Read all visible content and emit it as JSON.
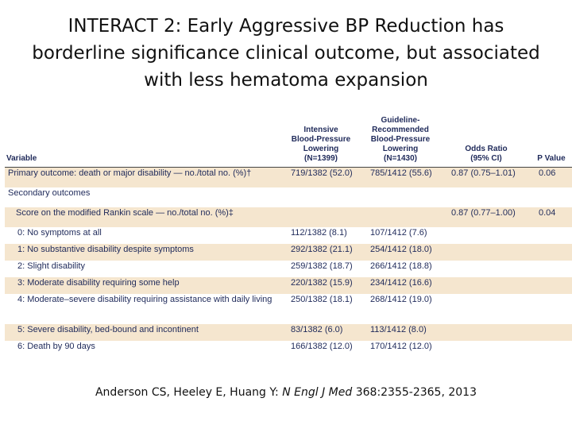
{
  "title": {
    "lines": [
      "INTERACT 2: Early Aggressive BP Reduction has",
      "borderline significance clinical outcome, but associated",
      "with less hematoma expansion"
    ]
  },
  "table": {
    "headers": {
      "variable": "Variable",
      "intensive": [
        "Intensive",
        "Blood-Pressure",
        "Lowering",
        "(N=1399)"
      ],
      "guideline": [
        "Guideline-",
        "Recommended",
        "Blood-Pressure",
        "Lowering",
        "(N=1430)"
      ],
      "odds": [
        "Odds Ratio",
        "(95% CI)"
      ],
      "pvalue": [
        "P Value"
      ]
    },
    "rows": [
      {
        "label": "Primary outcome: death or major disability — no./total no. (%)†",
        "intensive": "719/1382 (52.0)",
        "guideline": "785/1412 (55.6)",
        "odds": "0.87 (0.75–1.01)",
        "p": "0.06"
      },
      {
        "label": "Secondary outcomes",
        "intensive": "",
        "guideline": "",
        "odds": "",
        "p": ""
      },
      {
        "label": "Score on the modified Rankin scale — no./total no. (%)‡",
        "intensive": "",
        "guideline": "",
        "odds": "0.87 (0.77–1.00)",
        "p": "0.04"
      },
      {
        "label": "0: No symptoms at all",
        "intensive": "112/1382 (8.1)",
        "guideline": "107/1412 (7.6)",
        "odds": "",
        "p": ""
      },
      {
        "label": "1: No substantive disability despite symptoms",
        "intensive": "292/1382 (21.1)",
        "guideline": "254/1412 (18.0)",
        "odds": "",
        "p": ""
      },
      {
        "label": "2: Slight disability",
        "intensive": "259/1382 (18.7)",
        "guideline": "266/1412 (18.8)",
        "odds": "",
        "p": ""
      },
      {
        "label": "3: Moderate disability requiring some help",
        "intensive": "220/1382 (15.9)",
        "guideline": "234/1412 (16.6)",
        "odds": "",
        "p": ""
      },
      {
        "label": "4: Moderate–severe disability requiring assistance with daily living",
        "intensive": "250/1382 (18.1)",
        "guideline": "268/1412 (19.0)",
        "odds": "",
        "p": ""
      },
      {
        "label": "5: Severe disability, bed-bound and incontinent",
        "intensive": "83/1382 (6.0)",
        "guideline": "113/1412 (8.0)",
        "odds": "",
        "p": ""
      },
      {
        "label": "6: Death by 90 days",
        "intensive": "166/1382 (12.0)",
        "guideline": "170/1412 (12.0)",
        "odds": "",
        "p": ""
      }
    ]
  },
  "citation": {
    "authors": "Anderson CS, Heeley E, Huang Y: ",
    "journal": "N Engl J Med",
    "rest": " 368:2355-2365, 2013"
  },
  "colors": {
    "row_shade": "#f5e6cf",
    "table_text": "#1f2a5a"
  }
}
